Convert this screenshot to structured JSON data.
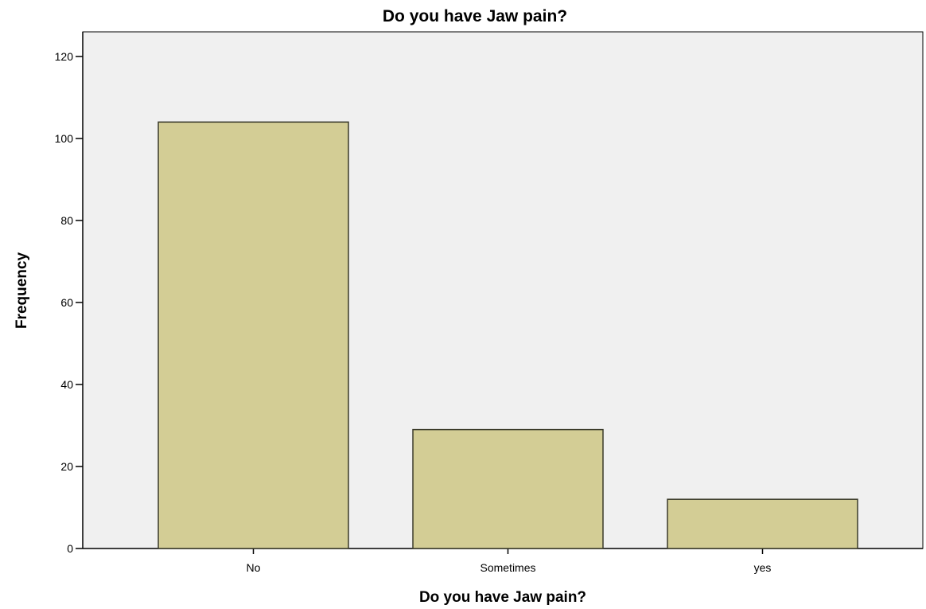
{
  "chart_data": {
    "type": "bar",
    "title": "Do you have Jaw pain?",
    "xlabel": "Do you have Jaw pain?",
    "ylabel": "Frequency",
    "categories": [
      "No",
      "Sometimes",
      "yes"
    ],
    "values": [
      104,
      29,
      12
    ],
    "ylim": [
      0,
      126
    ],
    "yticks": [
      0,
      20,
      40,
      60,
      80,
      100,
      120
    ],
    "grid": false,
    "legend": "none",
    "colors": {
      "plot_background": "#f0f0f0",
      "bar_fill": "#d3cd95",
      "bar_stroke": "#3a3a2a",
      "axis": "#000000"
    }
  }
}
